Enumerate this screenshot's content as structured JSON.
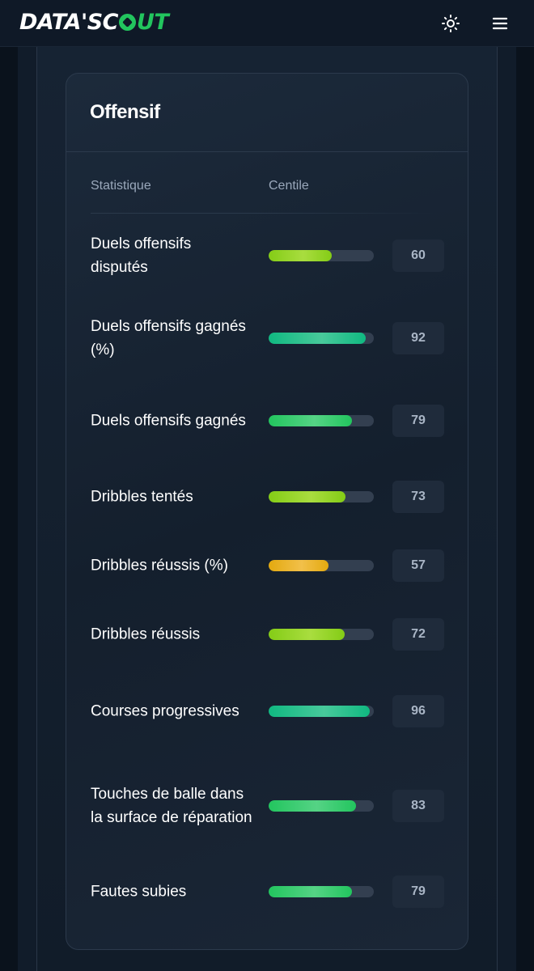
{
  "header": {
    "logo_part1": "DATA'SC",
    "logo_part2": "UT",
    "theme_icon": "sun-icon",
    "menu_icon": "hamburger-menu-icon"
  },
  "card": {
    "title": "Offensif",
    "col_stat": "Statistique",
    "col_centile": "Centile"
  },
  "colors": {
    "yellow": "#e3a90f",
    "lime": "#84cc16",
    "green": "#22c55e",
    "teal": "#10b981"
  },
  "stats": [
    {
      "label": "Duels offensifs disputés",
      "value": "60",
      "percentile": 60,
      "color": "lime"
    },
    {
      "label": "Duels offensifs gagnés (%)",
      "value": "92",
      "percentile": 92,
      "color": "teal"
    },
    {
      "label": "Duels offensifs gagnés",
      "value": "79",
      "percentile": 79,
      "color": "green"
    },
    {
      "label": "Dribbles tentés",
      "value": "73",
      "percentile": 73,
      "color": "lime"
    },
    {
      "label": "Dribbles réussis (%)",
      "value": "57",
      "percentile": 57,
      "color": "yellow"
    },
    {
      "label": "Dribbles réussis",
      "value": "72",
      "percentile": 72,
      "color": "lime"
    },
    {
      "label": "Courses progressives",
      "value": "96",
      "percentile": 96,
      "color": "teal"
    },
    {
      "label": "Touches de balle dans la surface de réparation",
      "value": "83",
      "percentile": 83,
      "color": "green"
    },
    {
      "label": "Fautes subies",
      "value": "79",
      "percentile": 79,
      "color": "green"
    }
  ]
}
